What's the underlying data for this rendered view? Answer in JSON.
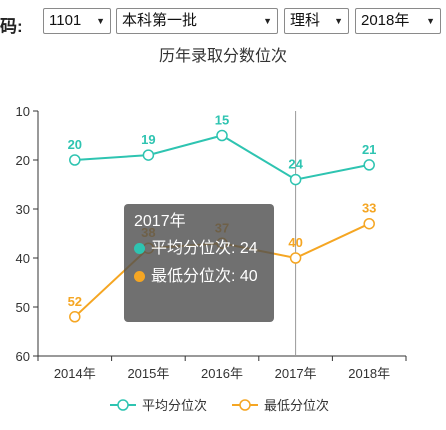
{
  "toolbar": {
    "code_label": "码:",
    "code_value": "1101",
    "batch_value": "本科第一批",
    "subject_value": "理科",
    "year_value": "2018年"
  },
  "colors": {
    "avg": "#2ec4b1",
    "min": "#f5a623",
    "axis": "#333333"
  },
  "chart_data": {
    "type": "line",
    "title": "历年录取分数位次",
    "categories": [
      "2014年",
      "2015年",
      "2016年",
      "2017年",
      "2018年"
    ],
    "y_ticks": [
      "10",
      "20",
      "30",
      "40",
      "50",
      "60"
    ],
    "ylim": [
      10,
      60
    ],
    "y_inverted": true,
    "series": [
      {
        "name": "平均分位次",
        "values": [
          20,
          19,
          15,
          24,
          21
        ],
        "labels": [
          "20",
          "19",
          "15",
          "24",
          "21"
        ]
      },
      {
        "name": "最低分位次",
        "values": [
          52,
          38,
          37,
          40,
          33
        ],
        "labels": [
          "52",
          "38",
          "37",
          "40",
          "33"
        ]
      }
    ],
    "legend_position": "bottom-center"
  },
  "tooltip": {
    "title": "2017年",
    "rows": [
      {
        "label": "平均分位次: 24"
      },
      {
        "label": "最低分位次: 40"
      }
    ]
  }
}
